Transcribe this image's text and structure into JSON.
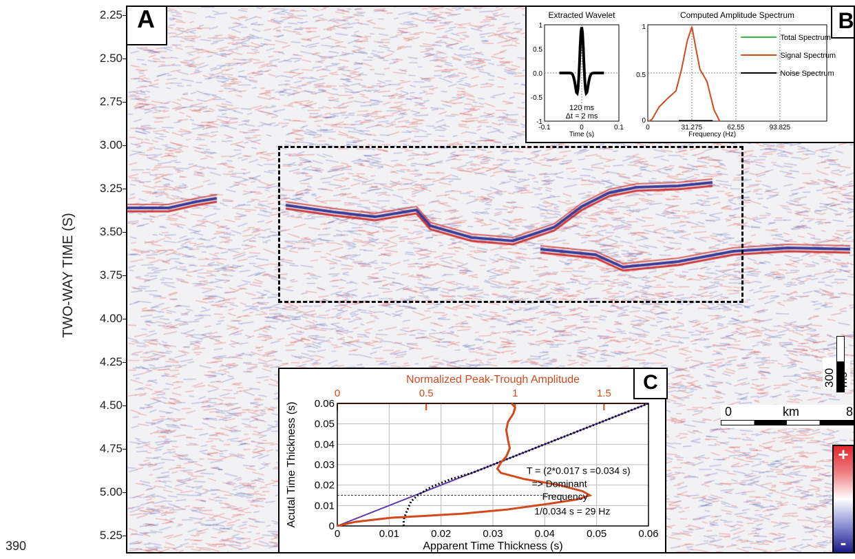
{
  "page_number": "390",
  "y_axis": {
    "title": "TWO-WAY TIME (S)",
    "ticks": [
      "2.25",
      "2.50",
      "2.75",
      "3.00",
      "3.25",
      "3.50",
      "3.75",
      "4.00",
      "4.25",
      "4.50",
      "4.75",
      "5.00",
      "5.25"
    ]
  },
  "panel_labels": {
    "a": "A",
    "b": "B",
    "c": "C"
  },
  "scale": {
    "time_bar": "300 ms",
    "dist_start": "0",
    "dist_unit": "km",
    "dist_end": "8"
  },
  "polarity": {
    "plus": "+",
    "minus": "-"
  },
  "colors": {
    "positive": "#d83a3a",
    "negative": "#2a2f9c",
    "signal": "#d24a1c",
    "total": "#39b54a",
    "linear": "#5b3aa8"
  },
  "panel_b": {
    "wavelet": {
      "title": "Extracted Wavelet",
      "xlabel": "Time (s)",
      "xticks": [
        "-0.1",
        "0",
        "0.1"
      ],
      "yticks": [
        "1",
        "0.5",
        "0.0",
        "-0.5",
        "-1"
      ],
      "annot1": "120 ms",
      "annot2": "Δt = 2 ms"
    },
    "spectrum": {
      "title": "Computed Amplitude Spectrum",
      "xlabel": "Frequency (Hz)",
      "xticks": [
        "0",
        "31.275",
        "62.55",
        "93.825"
      ],
      "yticks": [
        "1",
        "0.5",
        "0"
      ],
      "legend": [
        "Total Spectrum",
        "Signal Spectrum",
        "Noise Spectrum"
      ]
    }
  },
  "chart_data": {
    "type": "line",
    "title": "",
    "top_axis_label": "Normalized Peak-Trough Amplitude",
    "top_ticks": [
      "0",
      "0.5",
      "1",
      "1.5"
    ],
    "xlabel": "Apparent Time Thickness (s)",
    "ylabel": "Acutal Time Thickness (s)",
    "xticks": [
      "0",
      "0.01",
      "0.02",
      "0.03",
      "0.04",
      "0.05",
      "0.06"
    ],
    "yticks": [
      "0",
      "0.01",
      "0.02",
      "0.03",
      "0.04",
      "0.05",
      "0.06"
    ],
    "xlim": [
      0,
      0.06
    ],
    "ylim": [
      0,
      0.06
    ],
    "top_lim": [
      0,
      1.75
    ],
    "series": [
      {
        "key": "amplitude",
        "axis": "top",
        "x": [
          0,
          0.1,
          0.3,
          0.5,
          0.7,
          0.95,
          1.2,
          1.35,
          1.42,
          1.38,
          1.25,
          1.05,
          0.92,
          0.9,
          0.92,
          0.95,
          0.97,
          0.96,
          0.95,
          0.96,
          0.99,
          1.0,
          0.98
        ],
        "y": [
          0,
          0.002,
          0.004,
          0.005,
          0.006,
          0.008,
          0.011,
          0.013,
          0.015,
          0.017,
          0.02,
          0.023,
          0.026,
          0.028,
          0.031,
          0.034,
          0.038,
          0.042,
          0.047,
          0.051,
          0.055,
          0.058,
          0.06
        ]
      },
      {
        "key": "apparent",
        "axis": "bottom",
        "x": [
          0.0128,
          0.0128,
          0.0132,
          0.0137,
          0.0142,
          0.0155,
          0.018,
          0.022,
          0.026,
          0.03,
          0.035,
          0.04,
          0.045,
          0.05,
          0.055,
          0.06
        ],
        "y": [
          0,
          0.003,
          0.006,
          0.009,
          0.012,
          0.015,
          0.019,
          0.023,
          0.026,
          0.03,
          0.035,
          0.04,
          0.045,
          0.05,
          0.055,
          0.06
        ]
      },
      {
        "key": "linear",
        "axis": "bottom",
        "x": [
          0,
          0.06
        ],
        "y": [
          0,
          0.06
        ]
      }
    ],
    "annotations": {
      "t_text": "T = (2*0.017 s =0.034 s)",
      "arrow_text": "=> Dominant",
      "freq_text": "Frequency",
      "calc_text": "1/0.034 s = 29 Hz"
    }
  }
}
